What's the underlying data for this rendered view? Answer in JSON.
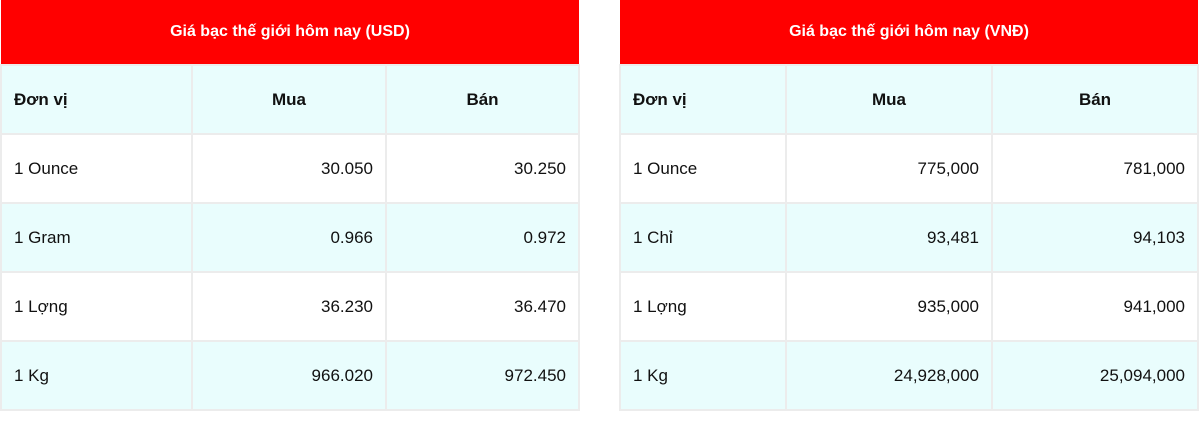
{
  "tables": [
    {
      "title": "Giá bạc thế giới hôm nay (USD)",
      "headers": [
        "Đơn vị",
        "Mua",
        "Bán"
      ],
      "rows": [
        [
          "1 Ounce",
          "30.050",
          "30.250"
        ],
        [
          "1 Gram",
          "0.966",
          "0.972"
        ],
        [
          "1 Lợng",
          "36.230",
          "36.470"
        ],
        [
          "1 Kg",
          "966.020",
          "972.450"
        ]
      ]
    },
    {
      "title": "Giá bạc thế giới hôm nay (VNĐ)",
      "headers": [
        "Đơn vị",
        "Mua",
        "Bán"
      ],
      "rows": [
        [
          "1 Ounce",
          "775,000",
          "781,000"
        ],
        [
          "1 Chỉ",
          "93,481",
          "94,103"
        ],
        [
          "1 Lợng",
          "935,000",
          "941,000"
        ],
        [
          "1 Kg",
          "24,928,000",
          "25,094,000"
        ]
      ]
    }
  ],
  "colors": {
    "header": "#ff0000",
    "row_alt": "#e9fdfd"
  }
}
